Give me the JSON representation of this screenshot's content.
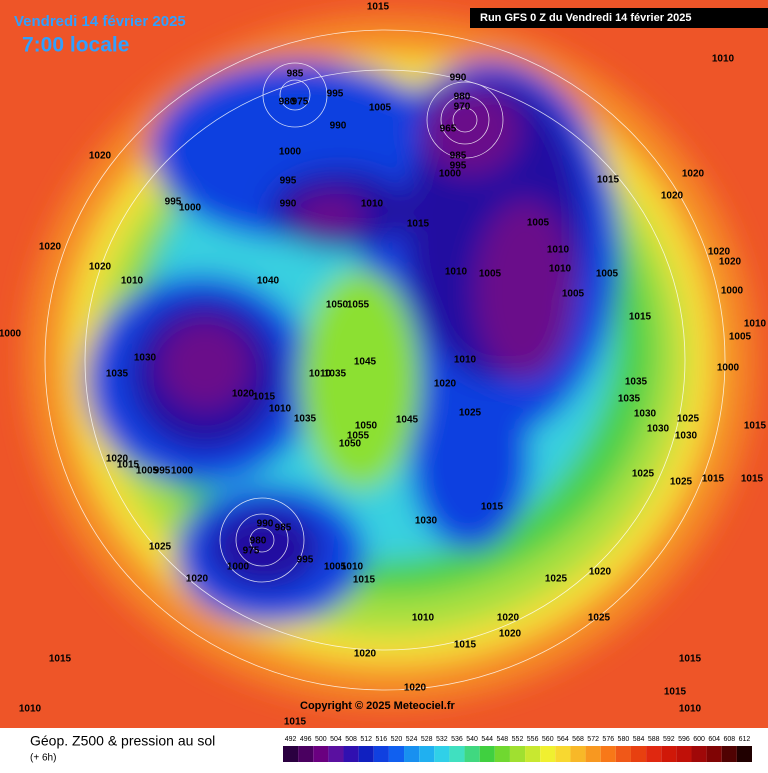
{
  "header": {
    "date": "Vendredi 14 février 2025",
    "time": "7:00 locale",
    "run": "Run GFS 0 Z du Vendredi 14 février 2025"
  },
  "copyright": "Copyright © 2025 Meteociel.fr",
  "footer": {
    "title": "Géop. Z500 & pression au sol",
    "step": "(+ 6h)"
  },
  "scale": {
    "ticks": [
      492,
      496,
      500,
      504,
      508,
      512,
      516,
      520,
      524,
      528,
      532,
      536,
      540,
      544,
      548,
      552,
      556,
      560,
      564,
      568,
      572,
      576,
      580,
      584,
      588,
      592,
      596,
      600,
      604,
      608,
      612
    ],
    "colors": [
      "#2a0040",
      "#4a0060",
      "#6a0080",
      "#5a10a0",
      "#3010b0",
      "#1020c0",
      "#1040e0",
      "#1060f0",
      "#1890f0",
      "#20b0f0",
      "#30d0e8",
      "#40e0c0",
      "#40d880",
      "#40d040",
      "#70d830",
      "#a0e030",
      "#c8e830",
      "#f0f030",
      "#f8d830",
      "#f8b828",
      "#f89820",
      "#f87818",
      "#f05818",
      "#e84010",
      "#e02810",
      "#d01808",
      "#c01008",
      "#a00808",
      "#800404",
      "#500202",
      "#200000"
    ]
  },
  "isobars": [
    "985",
    "980",
    "975",
    "995",
    "990",
    "1005",
    "1000",
    "995",
    "990",
    "1010",
    "990",
    "980",
    "970",
    "965",
    "985",
    "995",
    "1000",
    "1015",
    "1005",
    "1010",
    "1010",
    "1005",
    "1010",
    "1005",
    "1005",
    "1015",
    "1040",
    "1050",
    "1055",
    "1045",
    "1035",
    "1010",
    "1020",
    "1015",
    "1010",
    "1030",
    "1035",
    "1020",
    "1015",
    "1005",
    "995",
    "1000",
    "1025",
    "1020",
    "1015",
    "1010",
    "1015",
    "1020",
    "1020",
    "1015",
    "1010",
    "1020",
    "1020",
    "1025",
    "1025",
    "1020",
    "1030",
    "1015",
    "1025",
    "1020",
    "1010",
    "1045",
    "1050",
    "1055",
    "1050",
    "1035",
    "990",
    "985",
    "980",
    "975",
    "1000",
    "995",
    "1005",
    "1010",
    "1015",
    "1035",
    "1035",
    "1030",
    "1030",
    "1025",
    "1030",
    "1025",
    "1025",
    "1015",
    "1015",
    "1015",
    "1000",
    "1005",
    "1010",
    "1000",
    "1020",
    "1020",
    "1020",
    "1020",
    "1015",
    "1010",
    "1020",
    "1020",
    "1020",
    "1010",
    "995",
    "1000",
    "1000",
    "1015",
    "1015",
    "1010",
    "1015"
  ]
}
